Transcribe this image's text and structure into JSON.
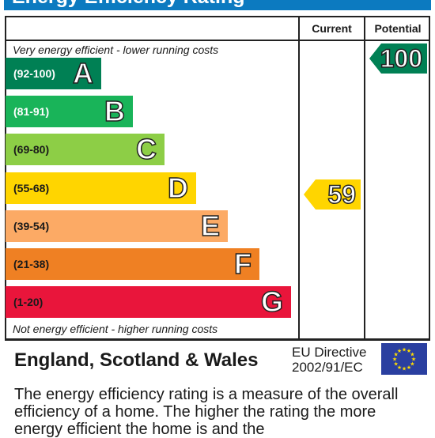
{
  "title": "Energy Efficiency Rating",
  "columns": {
    "current": "Current",
    "potential": "Potential"
  },
  "top_caption": "Very energy efficient - lower running costs",
  "bottom_caption": "Not energy efficient - higher running costs",
  "bands": [
    {
      "range": "(92-100)",
      "letter": "A",
      "color": "#008054",
      "text_color": "#ffffff"
    },
    {
      "range": "(81-91)",
      "letter": "B",
      "color": "#19b459",
      "text_color": "#ffffff"
    },
    {
      "range": "(69-80)",
      "letter": "C",
      "color": "#8dce46",
      "text_color": "#1a1a1a"
    },
    {
      "range": "(55-68)",
      "letter": "D",
      "color": "#ffd500",
      "text_color": "#1a1a1a"
    },
    {
      "range": "(39-54)",
      "letter": "E",
      "color": "#fcaa65",
      "text_color": "#1a1a1a"
    },
    {
      "range": "(21-38)",
      "letter": "F",
      "color": "#ef8023",
      "text_color": "#1a1a1a"
    },
    {
      "range": "(1-20)",
      "letter": "G",
      "color": "#e9153b",
      "text_color": "#1a1a1a"
    }
  ],
  "current_rating": {
    "value": "59",
    "band": "D",
    "color": "#ffd500"
  },
  "potential_rating": {
    "value": "100",
    "band": "A",
    "color": "#008054"
  },
  "footer": {
    "region": "England, Scotland & Wales",
    "directive_line1": "EU Directive",
    "directive_line2": "2002/91/EC",
    "flag_icon": "eu-flag-icon"
  },
  "description": "The energy efficiency rating is a measure of the overall efficiency of a home. The higher the rating the more energy efficient the home is and the"
}
